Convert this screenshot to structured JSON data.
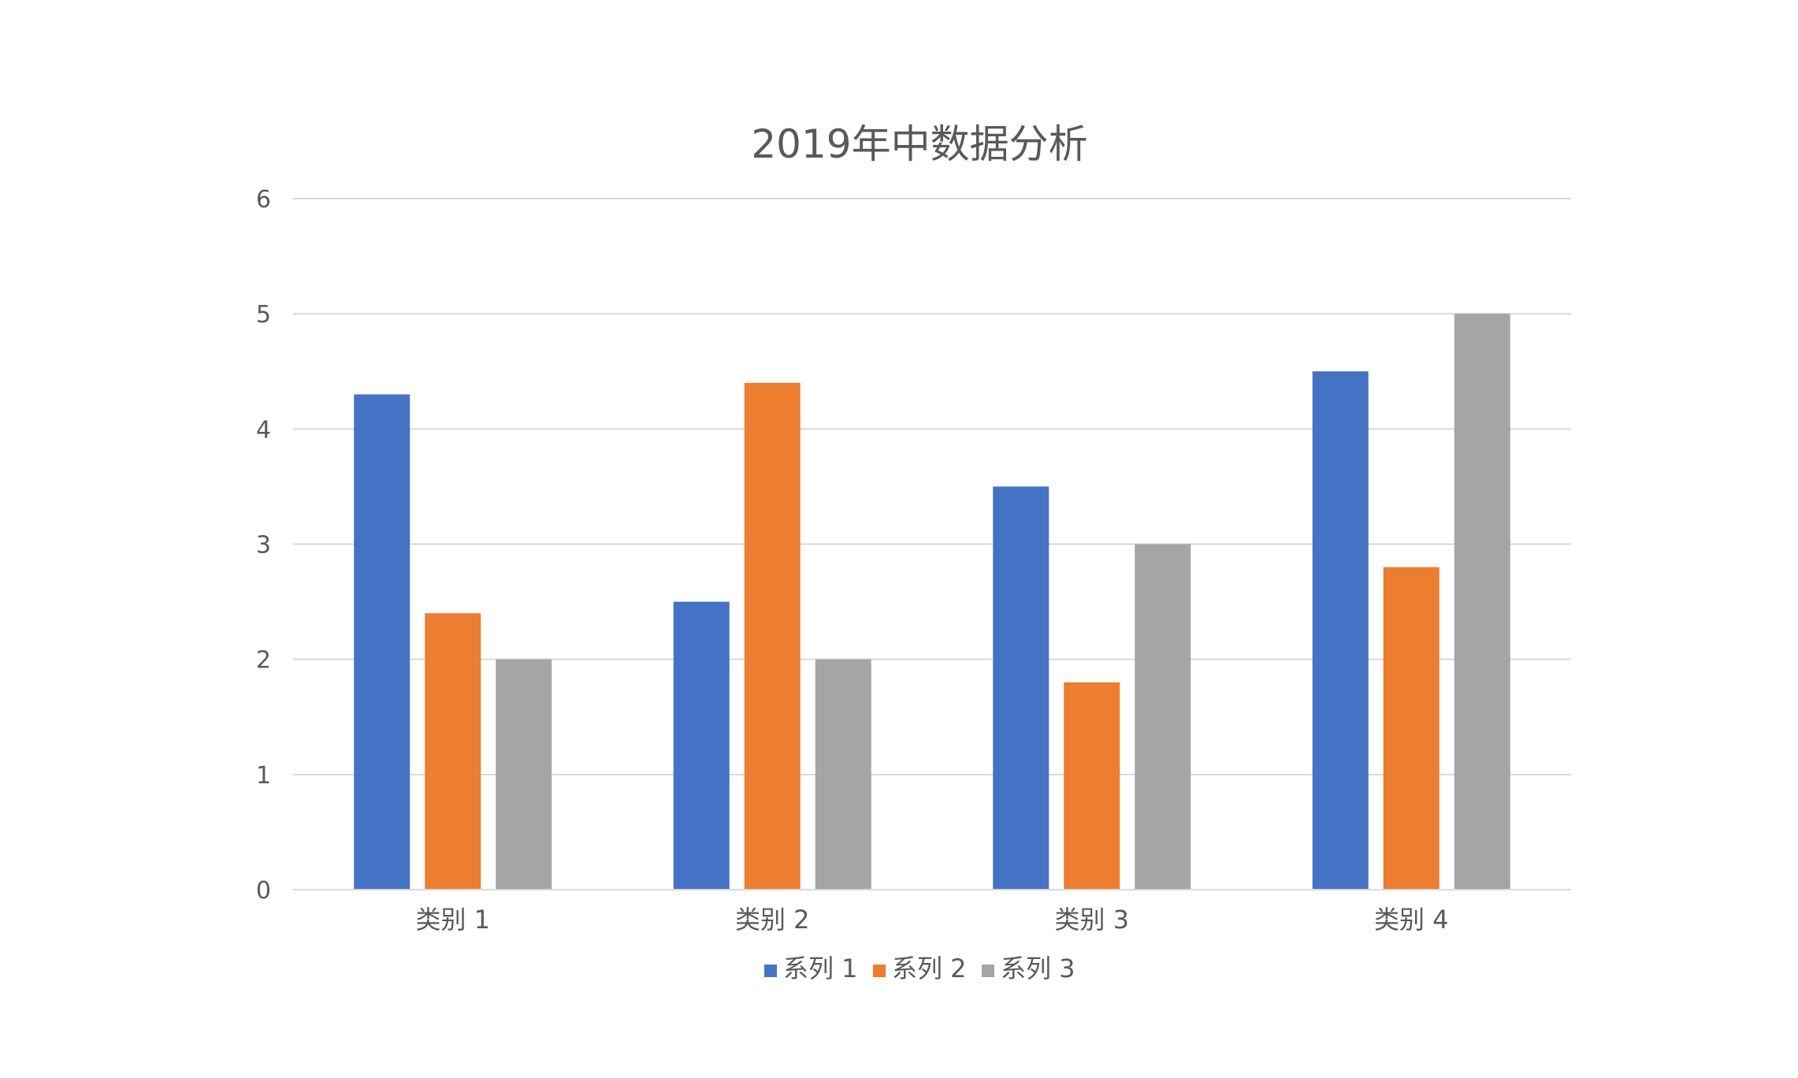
{
  "chart_data": {
    "type": "bar",
    "title": "2019年中数据分析",
    "xlabel": "",
    "ylabel": "",
    "categories": [
      "类别 1",
      "类别 2",
      "类别 3",
      "类别 4"
    ],
    "series": [
      {
        "name": "系列 1",
        "color": "#4472C4",
        "values": [
          4.3,
          2.5,
          3.5,
          4.5
        ]
      },
      {
        "name": "系列 2",
        "color": "#ED7D31",
        "values": [
          2.4,
          4.4,
          1.8,
          2.8
        ]
      },
      {
        "name": "系列 3",
        "color": "#A5A5A5",
        "values": [
          2,
          2,
          3,
          5
        ]
      }
    ],
    "ylim": [
      0,
      6
    ],
    "yticks": [
      "0",
      "1",
      "2",
      "3",
      "4",
      "5",
      "6"
    ],
    "grid": true,
    "legend_position": "bottom"
  }
}
